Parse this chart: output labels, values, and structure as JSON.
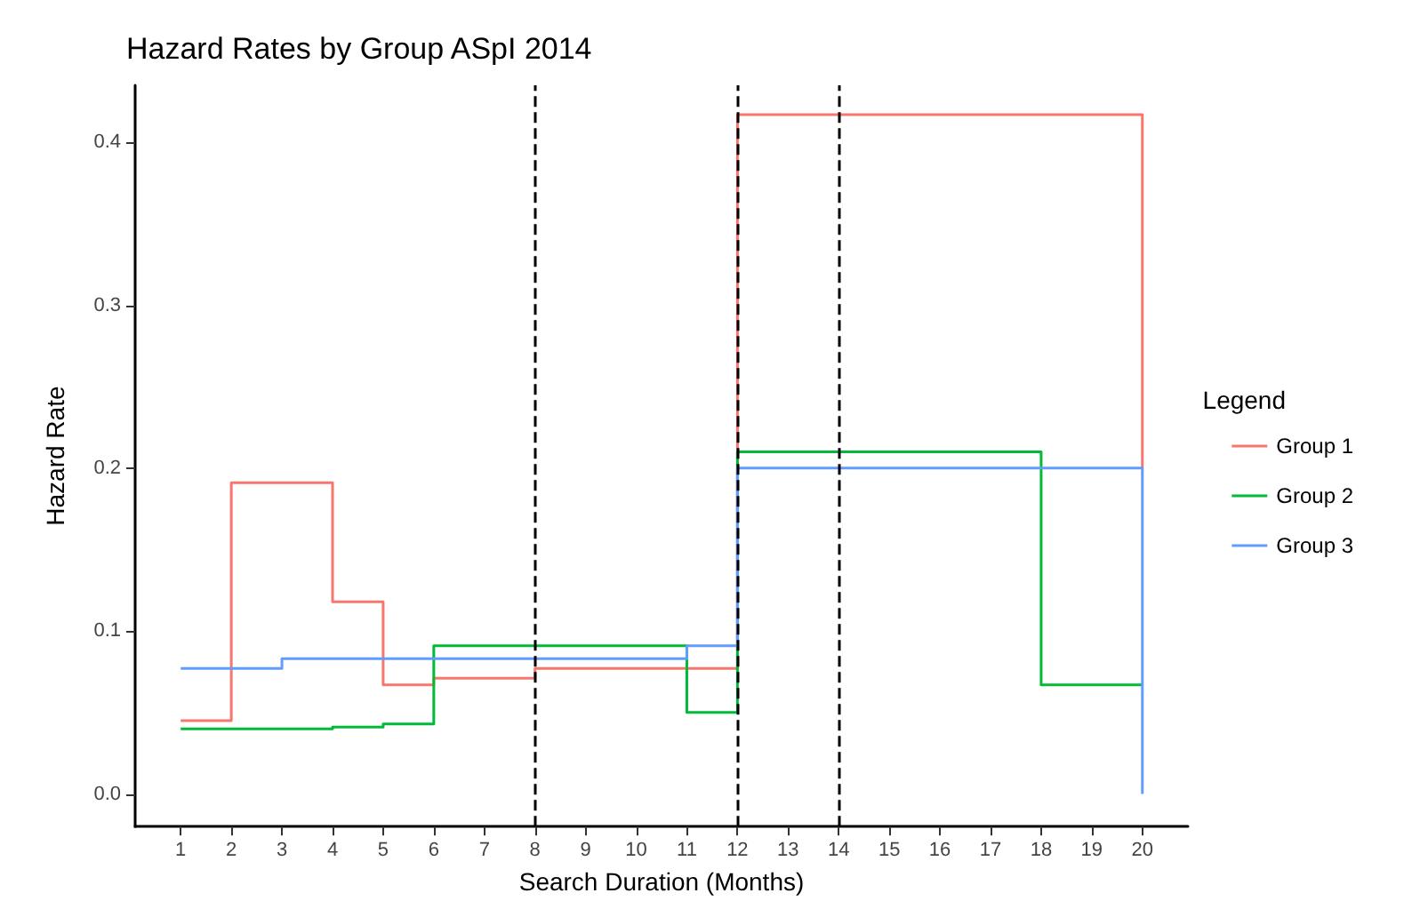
{
  "chart_data": {
    "type": "step",
    "title": "Hazard Rates by Group ASpI 2014",
    "xlabel": "Search Duration (Months)",
    "ylabel": "Hazard Rate",
    "legend_title": "Legend",
    "legend": "right",
    "grid": false,
    "series": [
      {
        "name": "Group 1",
        "color": "#f8766d",
        "x": [
          1,
          2,
          4,
          5,
          6,
          8,
          12,
          20
        ],
        "values": [
          0.045,
          0.191,
          0.118,
          0.067,
          0.071,
          0.077,
          0.417,
          0.2
        ]
      },
      {
        "name": "Group 2",
        "color": "#00ba38",
        "x": [
          1,
          4,
          5,
          6,
          11,
          12,
          18,
          20
        ],
        "values": [
          0.04,
          0.041,
          0.043,
          0.091,
          0.05,
          0.21,
          0.067,
          0.067
        ]
      },
      {
        "name": "Group 3",
        "color": "#619cff",
        "x": [
          1,
          3,
          11,
          12,
          20
        ],
        "values": [
          0.077,
          0.083,
          0.091,
          0.2,
          0
        ]
      }
    ],
    "xlim": [
      0.1,
      20.9
    ],
    "xticks": [
      1,
      2,
      3,
      4,
      5,
      6,
      7,
      8,
      9,
      10,
      11,
      12,
      13,
      14,
      15,
      16,
      17,
      18,
      19,
      20
    ],
    "ylim": [
      -0.02,
      0.435
    ],
    "yticks": [
      {
        "value": 0,
        "label": "0.0"
      },
      {
        "value": 0.1,
        "label": "0.1"
      },
      {
        "value": 0.2,
        "label": "0.2"
      },
      {
        "value": 0.3,
        "label": "0.3"
      },
      {
        "value": 0.4,
        "label": "0.4"
      }
    ],
    "ref_lines": [
      {
        "axis": "x",
        "value": 8,
        "color": "#000000",
        "line_style": "dashed"
      },
      {
        "axis": "x",
        "value": 12,
        "color": "#000000",
        "line_style": "dashed"
      },
      {
        "axis": "x",
        "value": 14,
        "color": "#000000",
        "line_style": "dashed"
      }
    ]
  }
}
